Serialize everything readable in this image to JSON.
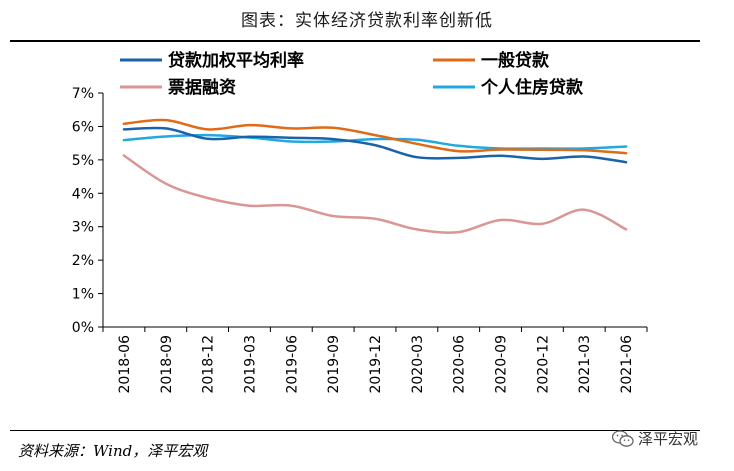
{
  "header": {
    "title": "图表：实体经济贷款利率创新低"
  },
  "footer": {
    "source": "资料来源：Wind，泽平宏观",
    "watermark": "泽平宏观",
    "watermark_icon": "wechat-icon"
  },
  "chart_data": {
    "type": "line",
    "title": "图表：实体经济贷款利率创新低",
    "xlabel": "",
    "ylabel": "",
    "ylim": [
      0,
      7
    ],
    "y_ticks": [
      "0%",
      "1%",
      "2%",
      "3%",
      "4%",
      "5%",
      "6%",
      "7%"
    ],
    "x": [
      "2018-06",
      "2018-09",
      "2018-12",
      "2019-03",
      "2019-06",
      "2019-09",
      "2019-12",
      "2020-03",
      "2020-06",
      "2020-09",
      "2020-12",
      "2021-03",
      "2021-06"
    ],
    "grid": false,
    "legend_position": "top",
    "series": [
      {
        "name": "贷款加权平均利率",
        "color": "#1a63aa",
        "values": [
          5.91,
          5.94,
          5.63,
          5.69,
          5.66,
          5.62,
          5.44,
          5.08,
          5.06,
          5.12,
          5.03,
          5.1,
          4.93
        ]
      },
      {
        "name": "一般贷款",
        "color": "#e06a17",
        "values": [
          6.08,
          6.19,
          5.91,
          6.04,
          5.94,
          5.96,
          5.74,
          5.48,
          5.26,
          5.31,
          5.3,
          5.29,
          5.2
        ]
      },
      {
        "name": "票据融资",
        "color": "#d99694",
        "values": [
          5.13,
          4.29,
          3.86,
          3.63,
          3.63,
          3.32,
          3.24,
          2.92,
          2.84,
          3.2,
          3.09,
          3.51,
          2.92
        ]
      },
      {
        "name": "个人住房贷款",
        "color": "#22a8e0",
        "values": [
          5.59,
          5.7,
          5.74,
          5.67,
          5.55,
          5.55,
          5.62,
          5.6,
          5.42,
          5.34,
          5.34,
          5.34,
          5.4
        ]
      }
    ]
  }
}
